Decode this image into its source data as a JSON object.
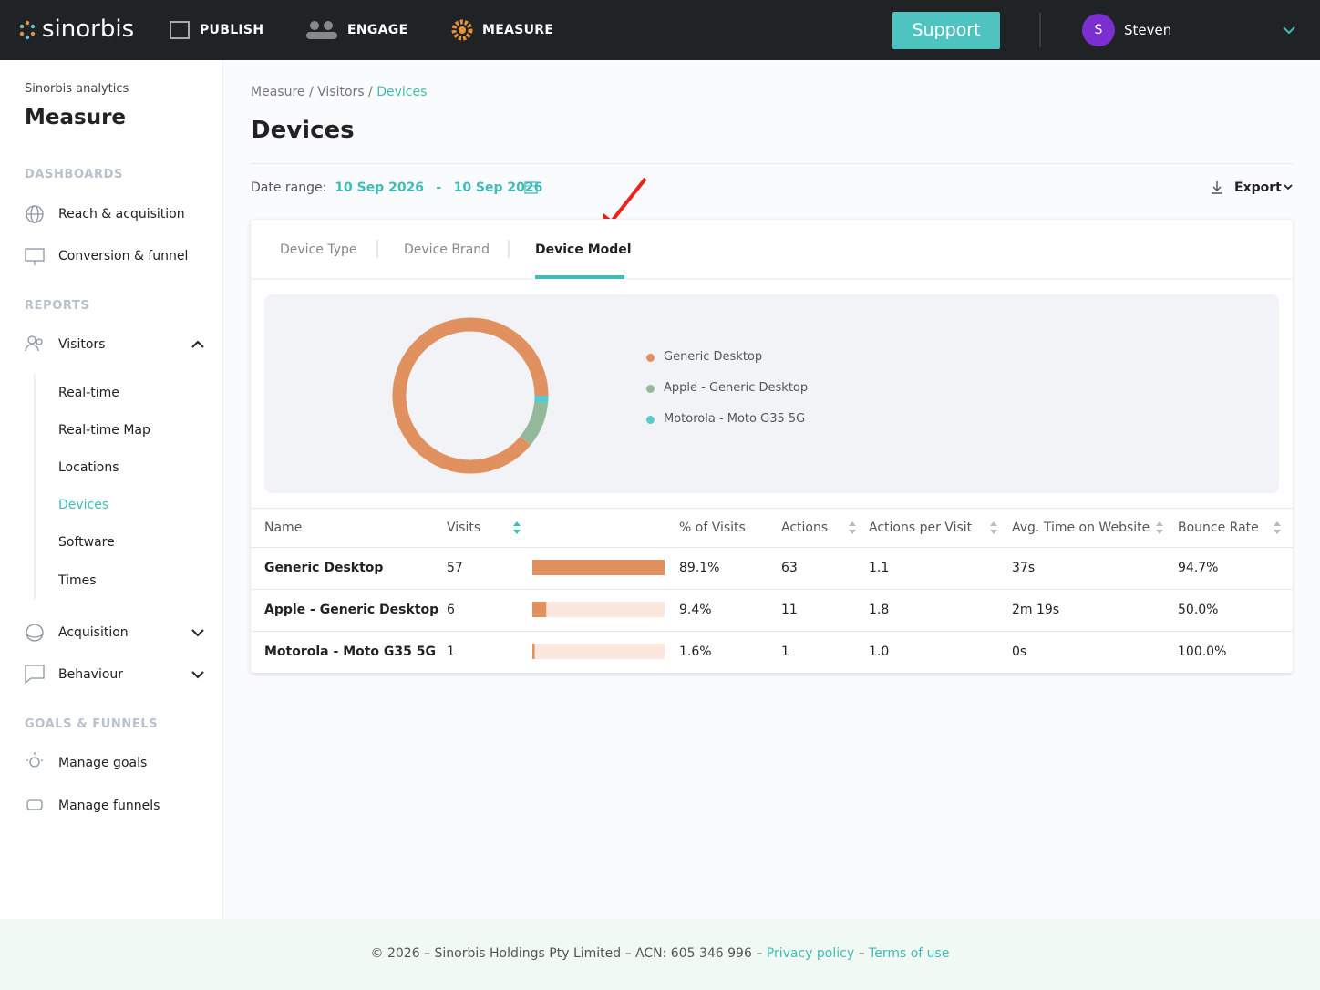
{
  "nav": {
    "logo": "sinorbis",
    "items": [
      "PUBLISH",
      "ENGAGE",
      "MEASURE"
    ],
    "support": "Support",
    "avatar": "S",
    "user": "Steven"
  },
  "sidebar": {
    "subtitle": "Sinorbis analytics",
    "title": "Measure",
    "dashboards_heading": "DASHBOARDS",
    "dashboards": [
      "Reach & acquisition",
      "Conversion & funnel"
    ],
    "reports_heading": "REPORTS",
    "visitors": "Visitors",
    "visitors_items": [
      "Real-time",
      "Real-time Map",
      "Locations",
      "Devices",
      "Software",
      "Times"
    ],
    "acquisition": "Acquisition",
    "behaviour": "Behaviour",
    "goals_heading": "GOALS & FUNNELS",
    "goals": [
      "Manage goals",
      "Manage funnels"
    ]
  },
  "breadcrumb": {
    "items": [
      "Measure",
      "Visitors",
      "Devices"
    ],
    "separator": "/"
  },
  "page_title": "Devices",
  "date_range": {
    "label": "Date range:",
    "start": "10 Sep 2026",
    "separator": "-",
    "end": "10 Sep 2026"
  },
  "export": "Export",
  "tabs": [
    "Device Type",
    "Device Brand",
    "Device Model"
  ],
  "chart_data": {
    "type": "donut",
    "series": [
      {
        "name": "Generic Desktop",
        "color": "#e0915f"
      },
      {
        "name": "Apple - Generic Desktop",
        "color": "#94b99a"
      },
      {
        "name": "Motorola - Moto G35 5G",
        "color": "#5cc8cc"
      }
    ],
    "values": [
      57,
      6,
      1
    ]
  },
  "table": {
    "columns": [
      "Name",
      "Visits",
      "% of Visits",
      "Actions",
      "Actions per Visit",
      "Avg. Time on Website",
      "Bounce Rate"
    ],
    "rows": [
      [
        "Generic Desktop",
        57,
        "89.1%",
        "63",
        "1.1",
        "37s",
        "94.7%"
      ],
      [
        "Apple - Generic Desktop",
        6,
        "9.4%",
        "11",
        "1.8",
        "2m 19s",
        "50.0%"
      ],
      [
        "Motorola - Moto G35 5G",
        1,
        "1.6%",
        "1",
        "1.0",
        "0s",
        "100.0%"
      ]
    ]
  },
  "footer": {
    "text": "© 2026 – Sinorbis Holdings Pty Limited – ACN: 605 346 996 –",
    "privacy": "Privacy policy",
    "dash": "–",
    "terms": "Terms of use"
  }
}
